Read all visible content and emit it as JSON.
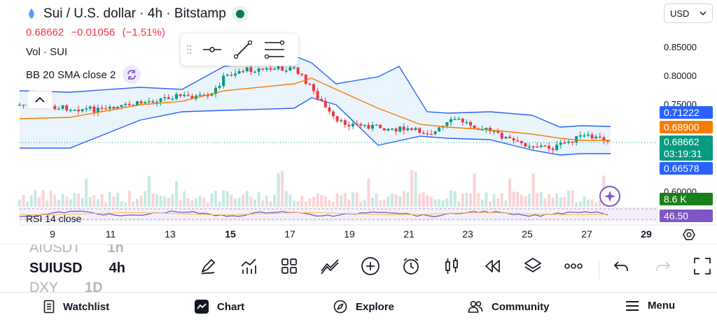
{
  "header": {
    "title": "Sui / U.S. dollar · 4h · Bitstamp",
    "price": "0.68662",
    "change": "−0.01056",
    "change_pct": "(−1.51%)",
    "indicator_volume": "Vol · SUI",
    "indicator_bb": "BB 20 SMA close 2",
    "indicator_rsi": "RSI 14 close"
  },
  "currency_selector": {
    "value": "USD"
  },
  "colors": {
    "up": "#089981",
    "down": "#f23645",
    "bb_basis": "#f57c00",
    "bb_band": "#2962ff",
    "bb_fill": "#e3f0fb",
    "rsi": "#7e57c2"
  },
  "price_axis": {
    "labels": [
      "0.85000",
      "0.80000",
      "0.75000",
      "0.60000"
    ],
    "upper_band": "0.71222",
    "basis": "0.68900",
    "last_price": "0.68662",
    "countdown": "03:19:31",
    "lower_band": "0.66578",
    "volume": "8.6 K",
    "rsi": "46.50"
  },
  "time_axis": [
    "9",
    "11",
    "13",
    "15",
    "17",
    "19",
    "21",
    "23",
    "25",
    "27",
    "29"
  ],
  "symbols": [
    {
      "name": "AIUSDT",
      "tf": "1h"
    },
    {
      "name": "SUIUSD",
      "tf": "4h"
    },
    {
      "name": "DXY",
      "tf": "1D"
    }
  ],
  "toolbar_icons": [
    "brush-icon",
    "indicators-icon",
    "templates-icon",
    "drawing-icon",
    "add-icon",
    "alert-icon",
    "candles-icon",
    "replay-icon",
    "layers-icon",
    "more-icon",
    "undo-icon",
    "redo-icon",
    "fullscreen-icon"
  ],
  "nav": {
    "watchlist": "Watchlist",
    "chart": "Chart",
    "explore": "Explore",
    "community": "Community",
    "menu": "Menu"
  }
}
